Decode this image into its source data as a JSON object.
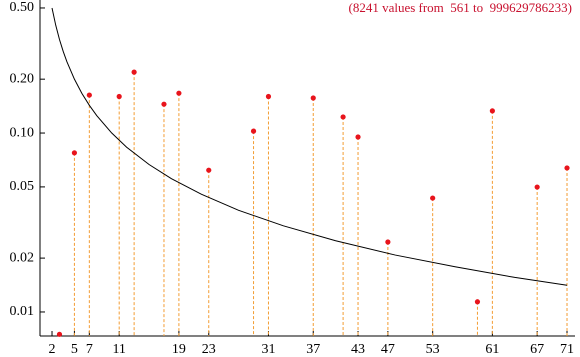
{
  "chart_data": {
    "type": "scatter",
    "annotation": "(8241 values from  561 to  999629786233)",
    "log_y": true,
    "xlim": [
      0.39,
      72.07
    ],
    "ylim": [
      0.00734,
      0.554
    ],
    "xticks": [
      2,
      5,
      7,
      11,
      19,
      23,
      31,
      37,
      43,
      47,
      53,
      61,
      67,
      71
    ],
    "yticks": [
      {
        "value": 0.5,
        "label": "0.50"
      },
      {
        "value": 0.2,
        "label": "0.20"
      },
      {
        "value": 0.1,
        "label": "0.10"
      },
      0.05,
      0.02,
      0.01
    ],
    "dropline_color": "#f39c33",
    "series": [
      {
        "style": "points",
        "color": "#e8141c",
        "x": [
          3,
          5,
          7,
          11,
          13,
          17,
          19,
          23,
          29,
          31,
          37,
          41,
          43,
          47,
          53,
          59,
          61,
          67,
          71
        ],
        "values": [
          0.0075,
          0.0775,
          0.163,
          0.16,
          0.219,
          0.145,
          0.167,
          0.062,
          0.1025,
          0.16,
          0.157,
          0.123,
          0.095,
          0.0246,
          0.0433,
          0.0114,
          0.133,
          0.0499,
          0.0638
        ]
      },
      {
        "style": "line",
        "color": "#000000",
        "x": [
          2,
          2.5,
          3,
          3.5,
          4,
          5,
          6,
          7,
          8,
          10,
          12,
          15,
          18,
          22,
          27,
          33,
          40,
          48,
          56,
          64,
          71
        ],
        "values": [
          0.5,
          0.4,
          0.3333,
          0.2857,
          0.25,
          0.2,
          0.1667,
          0.1429,
          0.125,
          0.1,
          0.0833,
          0.0667,
          0.0556,
          0.0455,
          0.037,
          0.0303,
          0.025,
          0.0208,
          0.0179,
          0.0156,
          0.0141
        ]
      }
    ]
  }
}
